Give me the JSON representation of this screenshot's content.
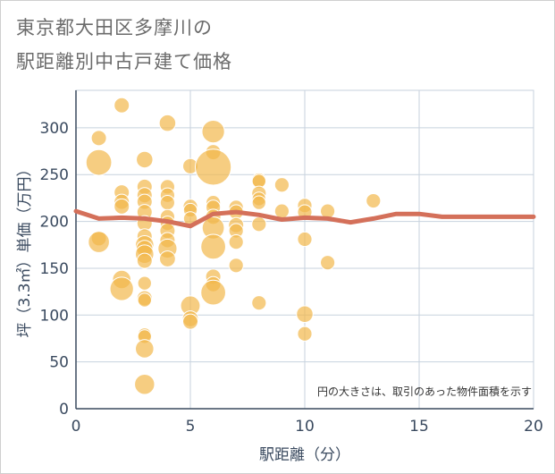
{
  "title_line1": "東京都大田区多摩川の",
  "title_line2": "駅距離別中古戸建て価格",
  "chart_data": {
    "type": "scatter",
    "xlabel": "駅距離（分）",
    "ylabel": "坪（3.3㎡）単価（万円）",
    "xlim": [
      0,
      20
    ],
    "ylim": [
      0,
      340
    ],
    "xticks": [
      0,
      5,
      10,
      15,
      20
    ],
    "yticks": [
      0,
      50,
      100,
      150,
      200,
      250,
      300
    ],
    "note": "円の大きさは、取引のあった物件面積を示す",
    "bubble_color": "#f2b84b",
    "line_color": "#d4705a",
    "bubbles": [
      {
        "x": 1,
        "y": 289,
        "s": 1
      },
      {
        "x": 1,
        "y": 263,
        "s": 3
      },
      {
        "x": 1,
        "y": 182,
        "s": 1
      },
      {
        "x": 1,
        "y": 178,
        "s": 2
      },
      {
        "x": 2,
        "y": 324,
        "s": 1
      },
      {
        "x": 2,
        "y": 231,
        "s": 1
      },
      {
        "x": 2,
        "y": 221,
        "s": 1
      },
      {
        "x": 2,
        "y": 216,
        "s": 1
      },
      {
        "x": 2,
        "y": 138,
        "s": 1.5
      },
      {
        "x": 2,
        "y": 128,
        "s": 2.5
      },
      {
        "x": 3,
        "y": 266,
        "s": 1.2
      },
      {
        "x": 3,
        "y": 237,
        "s": 1
      },
      {
        "x": 3,
        "y": 228,
        "s": 1
      },
      {
        "x": 3,
        "y": 221,
        "s": 1
      },
      {
        "x": 3,
        "y": 210,
        "s": 1
      },
      {
        "x": 3,
        "y": 198,
        "s": 1
      },
      {
        "x": 3,
        "y": 184,
        "s": 1
      },
      {
        "x": 3,
        "y": 175,
        "s": 1.5
      },
      {
        "x": 3,
        "y": 171,
        "s": 1.2
      },
      {
        "x": 3,
        "y": 165,
        "s": 1.5
      },
      {
        "x": 3,
        "y": 158,
        "s": 1
      },
      {
        "x": 3,
        "y": 134,
        "s": 0.8
      },
      {
        "x": 3,
        "y": 118,
        "s": 1
      },
      {
        "x": 3,
        "y": 116,
        "s": 0.8
      },
      {
        "x": 3,
        "y": 79,
        "s": 0.8
      },
      {
        "x": 3,
        "y": 77,
        "s": 0.8
      },
      {
        "x": 3,
        "y": 64,
        "s": 1.5
      },
      {
        "x": 3,
        "y": 26,
        "s": 1.8
      },
      {
        "x": 4,
        "y": 305,
        "s": 1.2
      },
      {
        "x": 4,
        "y": 237,
        "s": 0.9
      },
      {
        "x": 4,
        "y": 228,
        "s": 0.9
      },
      {
        "x": 4,
        "y": 220,
        "s": 0.9
      },
      {
        "x": 4,
        "y": 205,
        "s": 0.9
      },
      {
        "x": 4,
        "y": 198,
        "s": 0.9
      },
      {
        "x": 4,
        "y": 190,
        "s": 1
      },
      {
        "x": 4,
        "y": 180,
        "s": 1
      },
      {
        "x": 4,
        "y": 171,
        "s": 1.6
      },
      {
        "x": 4,
        "y": 160,
        "s": 1.1
      },
      {
        "x": 5,
        "y": 259,
        "s": 1
      },
      {
        "x": 5,
        "y": 216,
        "s": 0.9
      },
      {
        "x": 5,
        "y": 212,
        "s": 0.8
      },
      {
        "x": 5,
        "y": 203,
        "s": 0.8
      },
      {
        "x": 5,
        "y": 110,
        "s": 1.7
      },
      {
        "x": 5,
        "y": 96,
        "s": 1.1
      },
      {
        "x": 5,
        "y": 93,
        "s": 1
      },
      {
        "x": 6,
        "y": 296,
        "s": 2.3
      },
      {
        "x": 6,
        "y": 274,
        "s": 1
      },
      {
        "x": 6,
        "y": 258,
        "s": 6
      },
      {
        "x": 6,
        "y": 220,
        "s": 0.9
      },
      {
        "x": 6,
        "y": 215,
        "s": 0.9
      },
      {
        "x": 6,
        "y": 205,
        "s": 1
      },
      {
        "x": 6,
        "y": 193,
        "s": 2.2
      },
      {
        "x": 6,
        "y": 173,
        "s": 2.8
      },
      {
        "x": 6,
        "y": 141,
        "s": 1
      },
      {
        "x": 6,
        "y": 133,
        "s": 1
      },
      {
        "x": 6,
        "y": 124,
        "s": 2.8
      },
      {
        "x": 7,
        "y": 215,
        "s": 0.9
      },
      {
        "x": 7,
        "y": 210,
        "s": 0.9
      },
      {
        "x": 7,
        "y": 196,
        "s": 1
      },
      {
        "x": 7,
        "y": 190,
        "s": 0.9
      },
      {
        "x": 7,
        "y": 178,
        "s": 0.9
      },
      {
        "x": 7,
        "y": 153,
        "s": 0.9
      },
      {
        "x": 8,
        "y": 244,
        "s": 0.9
      },
      {
        "x": 8,
        "y": 243,
        "s": 0.8
      },
      {
        "x": 8,
        "y": 230,
        "s": 0.9
      },
      {
        "x": 8,
        "y": 224,
        "s": 0.8
      },
      {
        "x": 8,
        "y": 220,
        "s": 0.8
      },
      {
        "x": 8,
        "y": 197,
        "s": 0.9
      },
      {
        "x": 8,
        "y": 113,
        "s": 0.9
      },
      {
        "x": 9,
        "y": 239,
        "s": 0.9
      },
      {
        "x": 9,
        "y": 211,
        "s": 0.9
      },
      {
        "x": 10,
        "y": 217,
        "s": 0.9
      },
      {
        "x": 10,
        "y": 210,
        "s": 0.9
      },
      {
        "x": 10,
        "y": 181,
        "s": 0.9
      },
      {
        "x": 10,
        "y": 101,
        "s": 1.2
      },
      {
        "x": 10,
        "y": 80,
        "s": 0.9
      },
      {
        "x": 11,
        "y": 211,
        "s": 0.9
      },
      {
        "x": 11,
        "y": 156,
        "s": 0.9
      },
      {
        "x": 13,
        "y": 222,
        "s": 0.9
      }
    ],
    "trend": [
      {
        "x": 0,
        "y": 211
      },
      {
        "x": 1,
        "y": 203
      },
      {
        "x": 2,
        "y": 204
      },
      {
        "x": 3,
        "y": 203
      },
      {
        "x": 4,
        "y": 200
      },
      {
        "x": 5,
        "y": 195
      },
      {
        "x": 6,
        "y": 208
      },
      {
        "x": 7,
        "y": 210
      },
      {
        "x": 8,
        "y": 207
      },
      {
        "x": 9,
        "y": 202
      },
      {
        "x": 10,
        "y": 204
      },
      {
        "x": 11,
        "y": 203
      },
      {
        "x": 12,
        "y": 199
      },
      {
        "x": 13,
        "y": 203
      },
      {
        "x": 14,
        "y": 208
      },
      {
        "x": 15,
        "y": 208
      },
      {
        "x": 16,
        "y": 205
      },
      {
        "x": 17,
        "y": 205
      },
      {
        "x": 18,
        "y": 205
      },
      {
        "x": 19,
        "y": 205
      },
      {
        "x": 20,
        "y": 205
      }
    ]
  }
}
